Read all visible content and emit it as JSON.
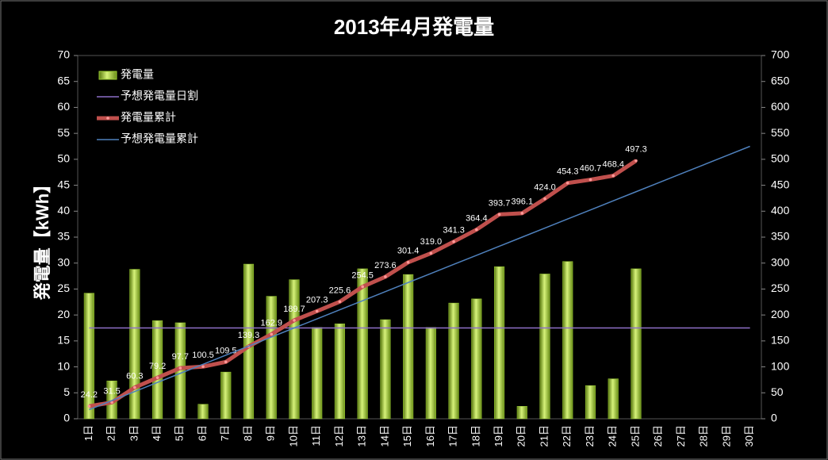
{
  "chart_data": {
    "type": "bar",
    "title": "2013年4月発電量",
    "y_label": "発電量【kWh】",
    "categories": [
      "1日",
      "2日",
      "3日",
      "4日",
      "5日",
      "6日",
      "7日",
      "8日",
      "9日",
      "10日",
      "11日",
      "12日",
      "13日",
      "14日",
      "15日",
      "16日",
      "17日",
      "18日",
      "19日",
      "20日",
      "21日",
      "22日",
      "23日",
      "24日",
      "25日",
      "26日",
      "27日",
      "28日",
      "29日",
      "30日"
    ],
    "series": [
      {
        "name": "発電量",
        "type": "bar",
        "color": "#9acd32",
        "values": [
          24.2,
          7.3,
          28.8,
          18.9,
          18.5,
          2.8,
          9.0,
          29.8,
          23.6,
          26.8,
          17.6,
          18.3,
          28.9,
          19.1,
          27.8,
          17.6,
          22.3,
          23.1,
          29.3,
          2.4,
          27.9,
          30.3,
          6.4,
          7.7,
          28.9,
          null,
          null,
          null,
          null,
          null
        ]
      },
      {
        "name": "予想発電量日割",
        "type": "line",
        "color": "#8e6fc7",
        "values": [
          17.5,
          17.5,
          17.5,
          17.5,
          17.5,
          17.5,
          17.5,
          17.5,
          17.5,
          17.5,
          17.5,
          17.5,
          17.5,
          17.5,
          17.5,
          17.5,
          17.5,
          17.5,
          17.5,
          17.5,
          17.5,
          17.5,
          17.5,
          17.5,
          17.5,
          17.5,
          17.5,
          17.5,
          17.5,
          17.5
        ]
      },
      {
        "name": "発電量累計",
        "type": "line",
        "color": "#c0504d",
        "axis": "y2",
        "markers": true,
        "values": [
          24.2,
          31.5,
          60.3,
          79.2,
          97.7,
          100.5,
          109.5,
          139.3,
          162.9,
          189.7,
          207.3,
          225.6,
          254.5,
          273.6,
          301.4,
          319.0,
          341.3,
          364.4,
          393.7,
          396.1,
          424.0,
          454.3,
          460.7,
          468.4,
          497.3,
          null,
          null,
          null,
          null,
          null
        ],
        "value_labels": [
          "24.2",
          "31.5",
          "60.3",
          "79.2",
          "97.7",
          "100.5",
          "109.5",
          "139.3",
          "162.9",
          "189.7",
          "207.3",
          "225.6",
          "254.5",
          "273.6",
          "301.4",
          "319.0",
          "341.3",
          "364.4",
          "393.7",
          "396.1",
          "424.0",
          "454.3",
          "460.7",
          "468.4",
          "497.3",
          null,
          null,
          null,
          null,
          null
        ]
      },
      {
        "name": "予想発電量累計",
        "type": "line",
        "color": "#4f81bd",
        "axis": "y2",
        "values": [
          17.5,
          35,
          52.5,
          70,
          87.5,
          105,
          122.5,
          140,
          157.5,
          175,
          192.5,
          210,
          227.5,
          245,
          262.5,
          280,
          297.5,
          315,
          332.5,
          350,
          367.5,
          385,
          402.5,
          420,
          437.5,
          455,
          472.5,
          490,
          507.5,
          525
        ]
      }
    ],
    "ylim": [
      0,
      70
    ],
    "yticks": [
      0,
      5,
      10,
      15,
      20,
      25,
      30,
      35,
      40,
      45,
      50,
      55,
      60,
      65,
      70
    ],
    "y2lim": [
      0,
      700
    ],
    "y2ticks": [
      0,
      50,
      100,
      150,
      200,
      250,
      300,
      350,
      400,
      450,
      500,
      550,
      600,
      650,
      700
    ],
    "legend": "upper left"
  }
}
